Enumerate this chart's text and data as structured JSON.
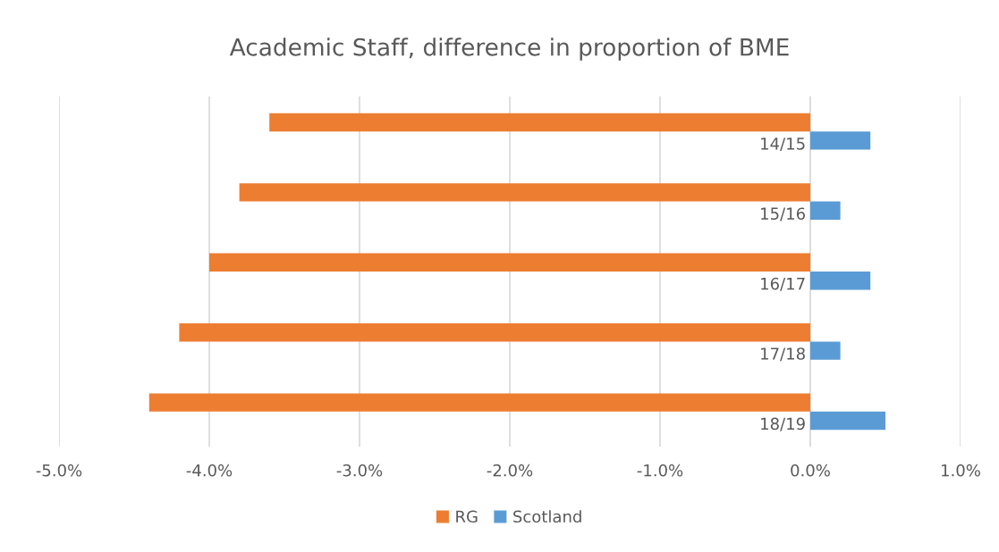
{
  "chart_data": {
    "type": "bar",
    "orientation": "horizontal",
    "title": "Academic Staff, difference in proportion of BME",
    "categories": [
      "14/15",
      "15/16",
      "16/17",
      "17/18",
      "18/19"
    ],
    "series": [
      {
        "name": "RG",
        "color": "#ed7d31",
        "values": [
          -3.6,
          -3.8,
          -4.0,
          -4.2,
          -4.4
        ]
      },
      {
        "name": "Scotland",
        "color": "#5b9bd5",
        "values": [
          0.4,
          0.2,
          0.4,
          0.2,
          0.5
        ]
      }
    ],
    "xlim": [
      -5,
      1
    ],
    "xticks": [
      {
        "value": -5,
        "label": "-5.0%"
      },
      {
        "value": -4,
        "label": "-4.0%"
      },
      {
        "value": -3,
        "label": "-3.0%"
      },
      {
        "value": -2,
        "label": "-2.0%"
      },
      {
        "value": -1,
        "label": "-1.0%"
      },
      {
        "value": 0,
        "label": "0.0%"
      },
      {
        "value": 1,
        "label": "1.0%"
      }
    ],
    "grid": "x",
    "legend": "bottom"
  }
}
